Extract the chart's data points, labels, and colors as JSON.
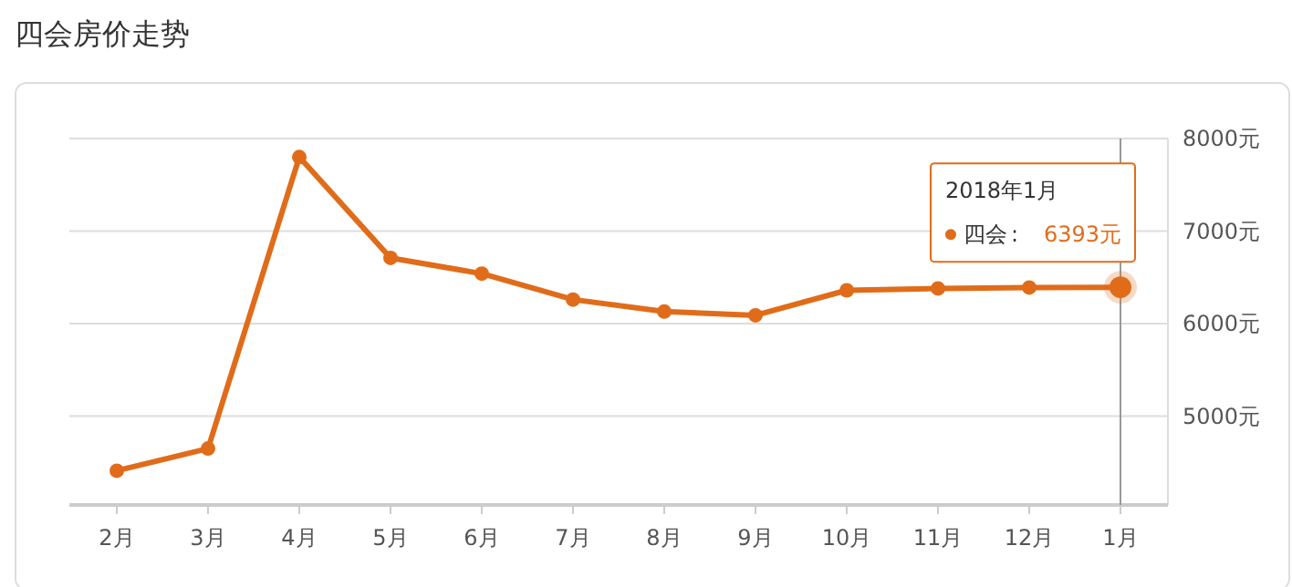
{
  "chart_data": {
    "type": "line",
    "title": "四会房价走势",
    "categories": [
      "2月",
      "3月",
      "4月",
      "5月",
      "6月",
      "7月",
      "8月",
      "9月",
      "10月",
      "11月",
      "12月",
      "1月"
    ],
    "series": [
      {
        "name": "四会",
        "color": "#e06c1a",
        "values": [
          4410,
          4650,
          7800,
          6710,
          6540,
          6260,
          6130,
          6090,
          6360,
          6380,
          6390,
          6393
        ],
        "value_labels": [
          null,
          null,
          null,
          null,
          null,
          null,
          null,
          null,
          null,
          null,
          null,
          "6393元"
        ]
      }
    ],
    "ylim": [
      4040,
      8000
    ],
    "yticks": [
      {
        "value": 5000,
        "label": "5000元"
      },
      {
        "value": 6000,
        "label": "6000元"
      },
      {
        "value": 7000,
        "label": "7000元"
      },
      {
        "value": 8000,
        "label": "8000元"
      }
    ],
    "grid": "y",
    "marker": "circle",
    "line_style": "solid",
    "ref_lines": [
      {
        "axis": "x",
        "value": "1月",
        "color": "#999999"
      }
    ],
    "annotations": [
      "2018年1月",
      ":"
    ]
  }
}
